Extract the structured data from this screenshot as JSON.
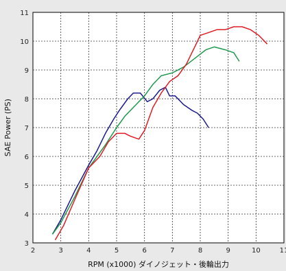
{
  "chart_data": {
    "type": "line",
    "title": "",
    "xlabel": "RPM (x1000) ダイノジェット・後輪出力",
    "ylabel": "SAE Power (PS)",
    "xlim": [
      2,
      11
    ],
    "ylim": [
      3,
      11
    ],
    "xticks": [
      2,
      3,
      4,
      5,
      6,
      7,
      8,
      9,
      10,
      11
    ],
    "yticks": [
      3,
      4,
      5,
      6,
      7,
      8,
      9,
      10,
      11
    ],
    "grid": true,
    "legend": "none",
    "series": [
      {
        "color": "#1a1a8c",
        "x": [
          2.7,
          3.0,
          3.5,
          4.0,
          4.3,
          4.6,
          4.9,
          5.1,
          5.4,
          5.6,
          5.85,
          6.1,
          6.3,
          6.55,
          6.75,
          6.9,
          7.1,
          7.4,
          7.7,
          7.9,
          8.1,
          8.3
        ],
        "y": [
          3.3,
          3.8,
          4.8,
          5.7,
          6.2,
          6.8,
          7.3,
          7.6,
          8.0,
          8.2,
          8.2,
          7.9,
          8.0,
          8.3,
          8.4,
          8.1,
          8.1,
          7.8,
          7.6,
          7.5,
          7.3,
          7.0
        ]
      },
      {
        "color": "#1e9a4e",
        "x": [
          2.7,
          3.0,
          3.5,
          4.0,
          4.3,
          4.6,
          5.0,
          5.3,
          5.7,
          6.0,
          6.3,
          6.6,
          7.0,
          7.4,
          7.8,
          8.2,
          8.5,
          8.9,
          9.2,
          9.4
        ],
        "y": [
          3.3,
          3.7,
          4.6,
          5.6,
          6.0,
          6.4,
          7.0,
          7.4,
          7.8,
          8.1,
          8.5,
          8.8,
          8.9,
          9.1,
          9.4,
          9.7,
          9.8,
          9.7,
          9.6,
          9.3
        ]
      },
      {
        "color": "#e01b24",
        "x": [
          2.8,
          3.1,
          3.5,
          4.0,
          4.4,
          4.7,
          5.0,
          5.3,
          5.5,
          5.8,
          6.0,
          6.3,
          6.6,
          6.9,
          7.2,
          7.5,
          7.8,
          8.0,
          8.3,
          8.6,
          8.9,
          9.2,
          9.5,
          9.8,
          10.1,
          10.4
        ],
        "y": [
          3.1,
          3.6,
          4.5,
          5.6,
          6.0,
          6.5,
          6.8,
          6.8,
          6.7,
          6.6,
          6.9,
          7.7,
          8.2,
          8.6,
          8.8,
          9.2,
          9.8,
          10.2,
          10.3,
          10.4,
          10.4,
          10.5,
          10.5,
          10.4,
          10.2,
          9.9
        ]
      }
    ]
  }
}
